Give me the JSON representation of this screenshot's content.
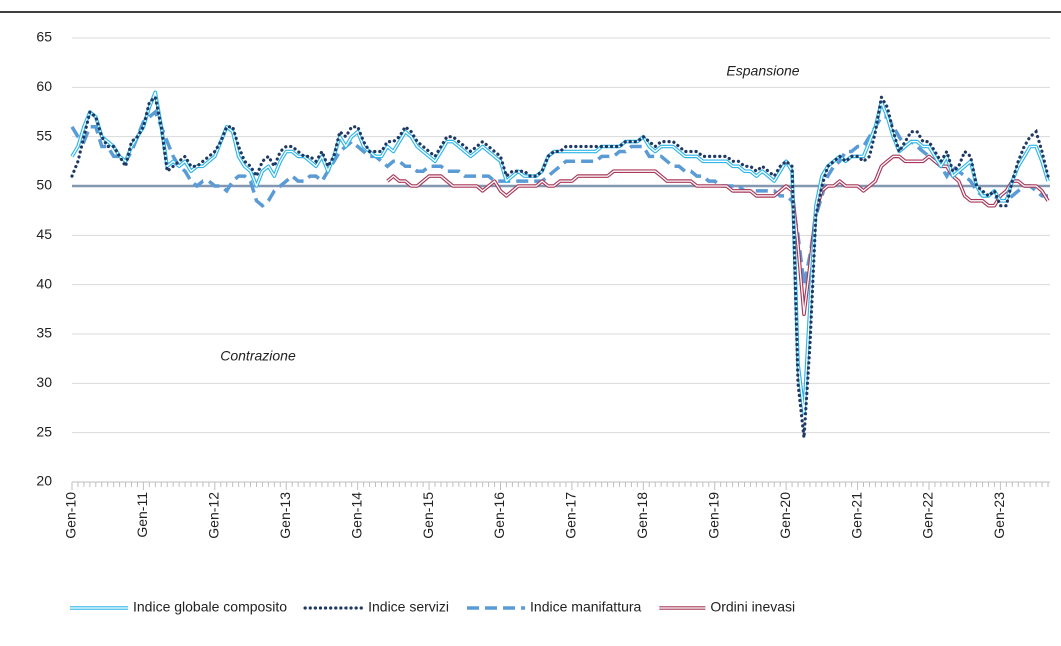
{
  "chart_data": {
    "type": "line",
    "annotations": [
      "Espansione",
      "Contrazione"
    ],
    "categories": [
      "Gen-10",
      null,
      null,
      null,
      null,
      null,
      null,
      null,
      null,
      null,
      null,
      null,
      "Gen-11",
      null,
      null,
      null,
      null,
      null,
      null,
      null,
      null,
      null,
      null,
      null,
      "Gen-12",
      null,
      null,
      null,
      null,
      null,
      null,
      null,
      null,
      null,
      null,
      null,
      "Gen-13",
      null,
      null,
      null,
      null,
      null,
      null,
      null,
      null,
      null,
      null,
      null,
      "Gen-14",
      null,
      null,
      null,
      null,
      null,
      null,
      null,
      null,
      null,
      null,
      null,
      "Gen-15",
      null,
      null,
      null,
      null,
      null,
      null,
      null,
      null,
      null,
      null,
      null,
      "Gen-16",
      null,
      null,
      null,
      null,
      null,
      null,
      null,
      null,
      null,
      null,
      null,
      "Gen-17",
      null,
      null,
      null,
      null,
      null,
      null,
      null,
      null,
      null,
      null,
      null,
      "Gen-18",
      null,
      null,
      null,
      null,
      null,
      null,
      null,
      null,
      null,
      null,
      null,
      "Gen-19",
      null,
      null,
      null,
      null,
      null,
      null,
      null,
      null,
      null,
      null,
      null,
      "Gen-20",
      null,
      null,
      null,
      null,
      null,
      null,
      null,
      null,
      null,
      null,
      null,
      "Gen-21",
      null,
      null,
      null,
      null,
      null,
      null,
      null,
      null,
      null,
      null,
      null,
      "Gen-22",
      null,
      null,
      null,
      null,
      null,
      null,
      null,
      null,
      null,
      null,
      null,
      "Gen-23",
      null,
      null,
      null,
      null,
      null,
      null,
      null,
      null
    ],
    "series": [
      {
        "name": "Indice globale composito",
        "color": "#2eb6e8",
        "style": "double",
        "values": [
          53,
          54,
          56,
          57.5,
          57,
          55,
          54.5,
          54,
          53,
          52.5,
          54,
          55,
          56,
          58,
          59.5,
          56,
          52,
          52.5,
          52,
          52.5,
          51.5,
          52,
          52,
          52.5,
          53,
          54.5,
          56,
          55.5,
          53,
          52,
          51.5,
          50,
          51.5,
          52,
          51,
          52.5,
          53.5,
          53.5,
          53,
          53,
          52.5,
          52,
          53,
          51.5,
          53,
          55,
          54,
          55,
          55.5,
          54,
          53.5,
          53,
          53,
          54,
          53.5,
          54.5,
          55.5,
          55,
          54,
          53.5,
          53,
          52.5,
          53.5,
          54.5,
          54.5,
          54,
          53.5,
          53,
          53.5,
          54,
          53.5,
          53,
          52.5,
          50.5,
          51,
          51.5,
          51,
          51,
          51,
          51.5,
          53,
          53.5,
          53.5,
          53.5,
          53.5,
          53.5,
          53.5,
          53.5,
          53.5,
          54,
          54,
          54,
          54,
          54.5,
          54.5,
          54.5,
          55,
          54,
          53.5,
          54,
          54,
          54,
          53.5,
          53,
          53,
          53,
          52.5,
          52.5,
          52.5,
          52.5,
          52.5,
          52,
          52,
          51.5,
          51.5,
          51,
          51.5,
          51,
          50.5,
          51.5,
          52.5,
          51.5,
          32,
          27,
          38,
          48,
          51,
          52,
          52.5,
          53,
          52.5,
          53,
          53,
          53,
          54.5,
          56,
          58.5,
          57,
          55,
          53.5,
          54,
          54.5,
          54.5,
          54,
          54,
          53,
          52,
          53,
          51,
          51.5,
          52,
          52.5,
          50,
          49,
          49,
          49.5,
          48.5,
          48.5,
          50.5,
          52,
          53,
          54,
          54,
          52.5,
          50.5
        ]
      },
      {
        "name": "Indice servizi",
        "color": "#1f3864",
        "style": "dotted",
        "values": [
          51,
          52.5,
          55,
          57.5,
          57,
          55,
          54,
          54,
          53,
          52,
          54.5,
          55,
          56,
          58.5,
          59,
          56,
          51.5,
          52,
          52.5,
          53,
          52,
          52,
          52.5,
          53,
          53.5,
          54.5,
          56,
          56,
          54,
          52.5,
          52,
          51,
          52.5,
          53,
          52,
          53.5,
          54,
          54,
          53.5,
          53,
          53,
          52.5,
          53.5,
          52,
          53,
          55.5,
          55,
          56,
          56,
          54.5,
          53.5,
          53.5,
          53.5,
          54.5,
          54.5,
          55,
          56,
          55.5,
          54.5,
          54,
          53.5,
          53,
          54,
          55,
          55,
          54.5,
          54,
          53.5,
          54,
          54.5,
          54,
          53.5,
          53,
          51,
          51.5,
          51.5,
          51.5,
          51,
          51,
          51.5,
          53,
          53.5,
          53.5,
          54,
          54,
          54,
          54,
          54,
          54,
          54,
          54,
          54,
          54,
          54.5,
          54.5,
          54.5,
          55,
          54.5,
          54,
          54.5,
          54.5,
          54.5,
          54,
          53.5,
          53.5,
          53.5,
          53,
          53,
          53,
          53,
          53,
          52.5,
          52.5,
          52,
          52,
          51.5,
          52,
          51.5,
          51,
          52,
          52.5,
          52,
          30,
          24.5,
          34,
          47,
          50,
          52,
          52.5,
          53,
          52.5,
          53,
          53,
          52.5,
          53,
          55.5,
          59,
          58,
          55.5,
          53.5,
          54.5,
          55.5,
          55.5,
          54.5,
          54.5,
          53.5,
          52.5,
          53.5,
          51.5,
          52,
          53.5,
          53,
          50,
          49.5,
          49,
          49.5,
          48,
          48,
          50.5,
          52.5,
          54,
          55,
          55.5,
          53.5,
          51
        ]
      },
      {
        "name": "Indice manifattura",
        "color": "#5b9bd5",
        "style": "dashed",
        "values": [
          56,
          55,
          54.5,
          56,
          56,
          54,
          54,
          53,
          53,
          52.5,
          53.5,
          55,
          56.5,
          57,
          57.5,
          56,
          54.5,
          53,
          52,
          51.5,
          50.5,
          50,
          50.5,
          50.5,
          50,
          50,
          49.5,
          50.5,
          51,
          51,
          50.5,
          48.5,
          48,
          48.5,
          49.5,
          50,
          50.5,
          51,
          50.5,
          50.5,
          51,
          51,
          50.5,
          51.5,
          52.5,
          53.5,
          54,
          54.5,
          54,
          53.5,
          53,
          53,
          52.5,
          52,
          52.5,
          52.5,
          52,
          52,
          51.5,
          51.5,
          52,
          52,
          52,
          51.5,
          51.5,
          51.5,
          51,
          51,
          51,
          51,
          51,
          50.5,
          50.5,
          50.5,
          50.5,
          50.5,
          50.5,
          50.5,
          50.5,
          50.5,
          51,
          51.5,
          52,
          52.5,
          52.5,
          52.5,
          52.5,
          52.5,
          52.5,
          53,
          53,
          53,
          53.5,
          53.5,
          54,
          54,
          54,
          53,
          53,
          53,
          52.5,
          52,
          52,
          51.5,
          51.5,
          51,
          51,
          50.5,
          50.5,
          50,
          50,
          50,
          50,
          49.5,
          49.5,
          49.5,
          49.5,
          49.5,
          49.5,
          49,
          49,
          48.5,
          45,
          40,
          43,
          47,
          49,
          51,
          52,
          52.5,
          53.5,
          53.5,
          54,
          54,
          55,
          56,
          57,
          57,
          56,
          55,
          54,
          54.5,
          54,
          53.5,
          53,
          52.5,
          52,
          51,
          52,
          51.5,
          51,
          50.5,
          49.5,
          49,
          49,
          49,
          48.5,
          48.5,
          49,
          49.5,
          50,
          50,
          49.5,
          49,
          49
        ]
      },
      {
        "name": "Ordini inevasi",
        "color": "#a8385a",
        "style": "double",
        "values": [
          null,
          null,
          null,
          null,
          null,
          null,
          null,
          null,
          null,
          null,
          null,
          null,
          null,
          null,
          null,
          null,
          null,
          null,
          null,
          null,
          null,
          null,
          null,
          null,
          null,
          null,
          null,
          null,
          null,
          null,
          null,
          null,
          null,
          null,
          null,
          null,
          null,
          null,
          null,
          null,
          null,
          null,
          null,
          null,
          null,
          null,
          null,
          null,
          null,
          null,
          null,
          null,
          null,
          50.5,
          51,
          50.5,
          50.5,
          50,
          50,
          50.5,
          51,
          51,
          51,
          50.5,
          50,
          50,
          50,
          50,
          50,
          49.5,
          50,
          50.5,
          49.5,
          49,
          49.5,
          50,
          50,
          50,
          50,
          50.5,
          50,
          50,
          50.5,
          50.5,
          50.5,
          51,
          51,
          51,
          51,
          51,
          51,
          51.5,
          51.5,
          51.5,
          51.5,
          51.5,
          51.5,
          51.5,
          51.5,
          51,
          50.5,
          50.5,
          50.5,
          50.5,
          50.5,
          50,
          50,
          50,
          50,
          50,
          50,
          49.5,
          49.5,
          49.5,
          49.5,
          49,
          49,
          49,
          49,
          49.5,
          50,
          49.5,
          44,
          37,
          42,
          47.5,
          49.5,
          50,
          50,
          50.5,
          50,
          50,
          50,
          49.5,
          50,
          50.5,
          52,
          52.5,
          53,
          53,
          52.5,
          52.5,
          52.5,
          52.5,
          53,
          52.5,
          52,
          52,
          51,
          50.5,
          49,
          48.5,
          48.5,
          48.5,
          48,
          48,
          49,
          49.5,
          50.5,
          50.5,
          50,
          50,
          50,
          49.5,
          48.5
        ]
      }
    ],
    "hline": 50,
    "ylim": [
      20,
      65
    ],
    "yticks": [
      20,
      25,
      30,
      35,
      40,
      45,
      50,
      55,
      60,
      65
    ],
    "grid": true,
    "legend": "bottom"
  }
}
